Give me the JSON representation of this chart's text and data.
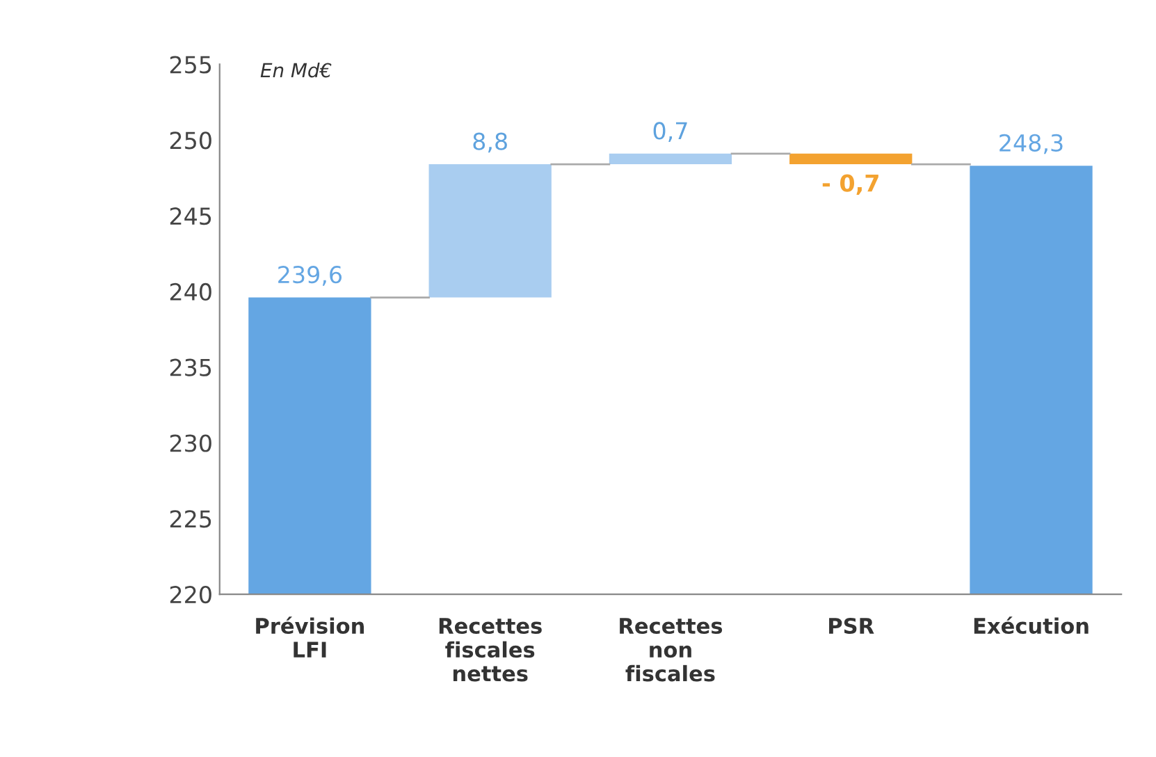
{
  "chart_data": {
    "type": "bar",
    "ylabel": "En Md€",
    "categories": [
      "Prévision\nLFI",
      "Recettes\nfiscales\nnettes",
      "Recettes\nnon\nfiscales",
      "PSR",
      "Exécution"
    ],
    "values": [
      19.6,
      8.8,
      0.7,
      -0.7,
      28.3
    ],
    "base": [
      220,
      239.6,
      248.4,
      249.1,
      220
    ],
    "colors": [
      "#64a6e3",
      "#a9cdf0",
      "#a9cdf0",
      "#f3a230",
      "#64a6e3"
    ],
    "value_labels": [
      "239,6",
      "8,8",
      "0,7",
      "- 0,7",
      "248,3"
    ],
    "ylim": [
      220,
      255
    ],
    "yticks": [
      220,
      225,
      230,
      235,
      240,
      245,
      250,
      255
    ],
    "grid": false
  }
}
